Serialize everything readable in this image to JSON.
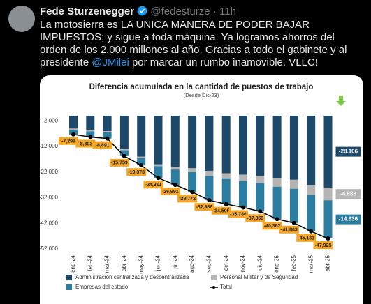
{
  "tweet": {
    "author": "Fede Sturzenegger",
    "handle": "@fedesturze",
    "time": "11h",
    "body": [
      "La motosierra es LA UNICA MANERA DE PODER BAJAR IMPUESTOS; y sigue a toda máquina. Ya logramos ahorros del orden de los 2.000 millones al año. Gracias a todo el gabinete y al presidente ",
      "@JMilei",
      " por marcar un rumbo inamovible. VLLC!"
    ]
  },
  "chart_data": {
    "type": "bar",
    "stacked": true,
    "title": "Diferencia acumulada en la cantidad de puestos de trabajo",
    "subtitle": "(Desde Dic-23)",
    "categories": [
      "ene-24",
      "feb-24",
      "mar-24",
      "abr-24",
      "may-24",
      "jun-24",
      "jul-24",
      "ago-24",
      "sep-24",
      "oct-24",
      "nov-24",
      "dic-24",
      "ene-25",
      "feb-25",
      "mar-25",
      "abr-25"
    ],
    "series": [
      {
        "name": "Administracion centralizada y descentralizada",
        "color": "#1d4a6b",
        "values": [
          -5000,
          -5500,
          -6000,
          -13000,
          -16000,
          -19000,
          -20000,
          -20500,
          -21500,
          -22500,
          -23000,
          -23500,
          -24500,
          -25000,
          -27000,
          -28106
        ],
        "value_labels": [
          null,
          null,
          null,
          null,
          null,
          null,
          null,
          null,
          null,
          null,
          null,
          null,
          null,
          null,
          null,
          "-28.106"
        ]
      },
      {
        "name": "Personal Militar y de Seguridad",
        "color": "#b4b4b4",
        "values": [
          -500,
          -600,
          -500,
          -500,
          -600,
          -700,
          -1000,
          -1500,
          -2000,
          -2200,
          -2500,
          -2800,
          -3200,
          -3500,
          -4000,
          -4883
        ],
        "value_labels": [
          null,
          null,
          null,
          null,
          null,
          null,
          null,
          null,
          null,
          null,
          null,
          null,
          null,
          null,
          null,
          "-4.883"
        ]
      },
      {
        "name": "Empresas del estado",
        "color": "#2b7ea1",
        "values": [
          -1799,
          -2203,
          -2391,
          -2259,
          -2773,
          -4611,
          -5991,
          -7772,
          -9486,
          -9805,
          -10286,
          -11058,
          -12663,
          -13363,
          -14131,
          -14936
        ],
        "value_labels": [
          null,
          null,
          null,
          null,
          null,
          null,
          null,
          null,
          null,
          null,
          null,
          null,
          null,
          null,
          null,
          "-14.936"
        ]
      },
      {
        "name": "Total",
        "type": "line",
        "color": "#000000",
        "values": [
          -7299,
          -8303,
          -8891,
          -15759,
          -19373,
          -24311,
          -26991,
          -29772,
          -32986,
          -34505,
          -35786,
          -37358,
          -40363,
          -41863,
          -45131,
          -47925
        ],
        "value_labels": [
          "-7,299",
          "-8,303",
          "-8,891",
          "-15,759",
          "-19,373",
          "-24,311",
          "-26,991",
          "-29,772",
          "-32,986",
          "-34,505",
          "-35,786",
          "-37,358",
          "-40,363",
          "-41,863",
          "-45,131",
          "-47,925"
        ]
      }
    ],
    "ylim": [
      -52000,
      0
    ],
    "yticks": [
      {
        "value": -2000,
        "label": "-2,000"
      },
      {
        "value": -12000,
        "label": "-12,000"
      },
      {
        "value": -22000,
        "label": "-22,000"
      },
      {
        "value": -32000,
        "label": "-32,000"
      },
      {
        "value": -42000,
        "label": "-42,000"
      },
      {
        "value": -52000,
        "label": "-52,000"
      }
    ],
    "label_color": "#f5a623"
  }
}
